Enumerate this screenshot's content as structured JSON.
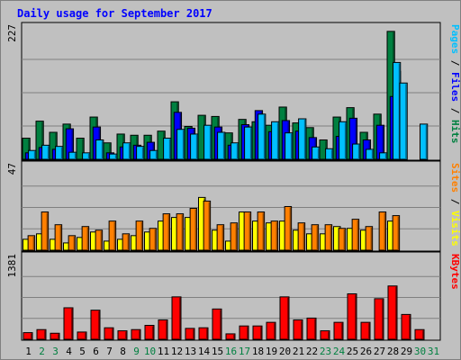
{
  "chart_data": {
    "type": "bar",
    "title": "Daily usage for September 2017",
    "days": [
      "1",
      "2",
      "3",
      "4",
      "5",
      "6",
      "7",
      "8",
      "9",
      "10",
      "11",
      "12",
      "13",
      "14",
      "15",
      "16",
      "17",
      "18",
      "19",
      "20",
      "21",
      "22",
      "23",
      "24",
      "25",
      "26",
      "27",
      "28",
      "29",
      "30",
      "31"
    ],
    "weekend_days": [
      "2",
      "3",
      "9",
      "10",
      "16",
      "17",
      "23",
      "24",
      "30",
      "31"
    ],
    "panels": [
      {
        "id": "hits-files-pages",
        "max_label": "227",
        "ymax": 227,
        "legend": [
          {
            "text": "Pages",
            "color": "#00C0FF"
          },
          {
            "text": " / ",
            "color": "#000000"
          },
          {
            "text": "Files",
            "color": "#0000FF"
          },
          {
            "text": " / ",
            "color": "#000000"
          },
          {
            "text": "Hits",
            "color": "#008040"
          }
        ],
        "series": [
          {
            "name": "Hits",
            "color": "#008040",
            "values": [
              36,
              65,
              46,
              60,
              36,
              72,
              28,
              43,
              41,
              41,
              48,
              98,
              56,
              75,
              73,
              45,
              68,
              64,
              58,
              89,
              62,
              54,
              33,
              72,
              88,
              46,
              77,
              218,
              0,
              0,
              0
            ]
          },
          {
            "name": "Files",
            "color": "#0000FF",
            "values": [
              11,
              20,
              17,
              52,
              0,
              55,
              11,
              21,
              24,
              29,
              0,
              80,
              53,
              0,
              55,
              24,
              59,
              83,
              47,
              66,
              48,
              37,
              0,
              39,
              70,
              33,
              58,
              107,
              0,
              0,
              0
            ]
          },
          {
            "name": "Pages",
            "color": "#00C0FF",
            "values": [
              15,
              24,
              22,
              12,
              11,
              33,
              9,
              28,
              22,
              15,
              36,
              51,
              43,
              58,
              46,
              28,
              55,
              77,
              64,
              45,
              69,
              21,
              18,
              64,
              26,
              17,
              11,
              150,
              0,
              0,
              0
            ]
          }
        ],
        "extra_bars": [
          {
            "day": "28",
            "name": "Pages",
            "values": [
              165,
              130
            ]
          },
          {
            "day": "30",
            "name": "Pages",
            "values": [
              60
            ]
          }
        ]
      },
      {
        "id": "visits-sites",
        "max_label": "47",
        "ymax": 47,
        "legend": [
          {
            "text": "Sites",
            "color": "#FF8000"
          },
          {
            "text": " / ",
            "color": "#000000"
          },
          {
            "text": "Visits",
            "color": "#FFFF00"
          }
        ],
        "series": [
          {
            "name": "Visits",
            "color": "#FFFF00",
            "values": [
              6,
              9,
              6,
              4,
              7,
              10,
              5,
              6,
              8,
              10,
              16,
              18,
              18,
              29,
              11,
              5,
              21,
              16,
              15,
              16,
              11,
              9,
              9,
              13,
              12,
              11,
              0,
              16,
              0,
              0,
              0
            ]
          },
          {
            "name": "Sites",
            "color": "#FF8000",
            "values": [
              8,
              21,
              14,
              8,
              13,
              11,
              16,
              9,
              16,
              12,
              20,
              20,
              23,
              27,
              14,
              15,
              21,
              21,
              16,
              24,
              15,
              14,
              14,
              12,
              17,
              13,
              21,
              19,
              0,
              0,
              0
            ]
          }
        ]
      },
      {
        "id": "kbytes",
        "max_label": "1381",
        "ymax": 1381,
        "legend": [
          {
            "text": "KBytes",
            "color": "#FF0000"
          }
        ],
        "series": [
          {
            "name": "KBytes",
            "color": "#FF0000",
            "values": [
              110,
              160,
              100,
              520,
              120,
              480,
              190,
              140,
              160,
              230,
              320,
              700,
              180,
              190,
              500,
              90,
              220,
              220,
              280,
              700,
              320,
              350,
              140,
              280,
              750,
              280,
              670,
              880,
              410,
              160,
              0
            ]
          }
        ]
      }
    ]
  }
}
